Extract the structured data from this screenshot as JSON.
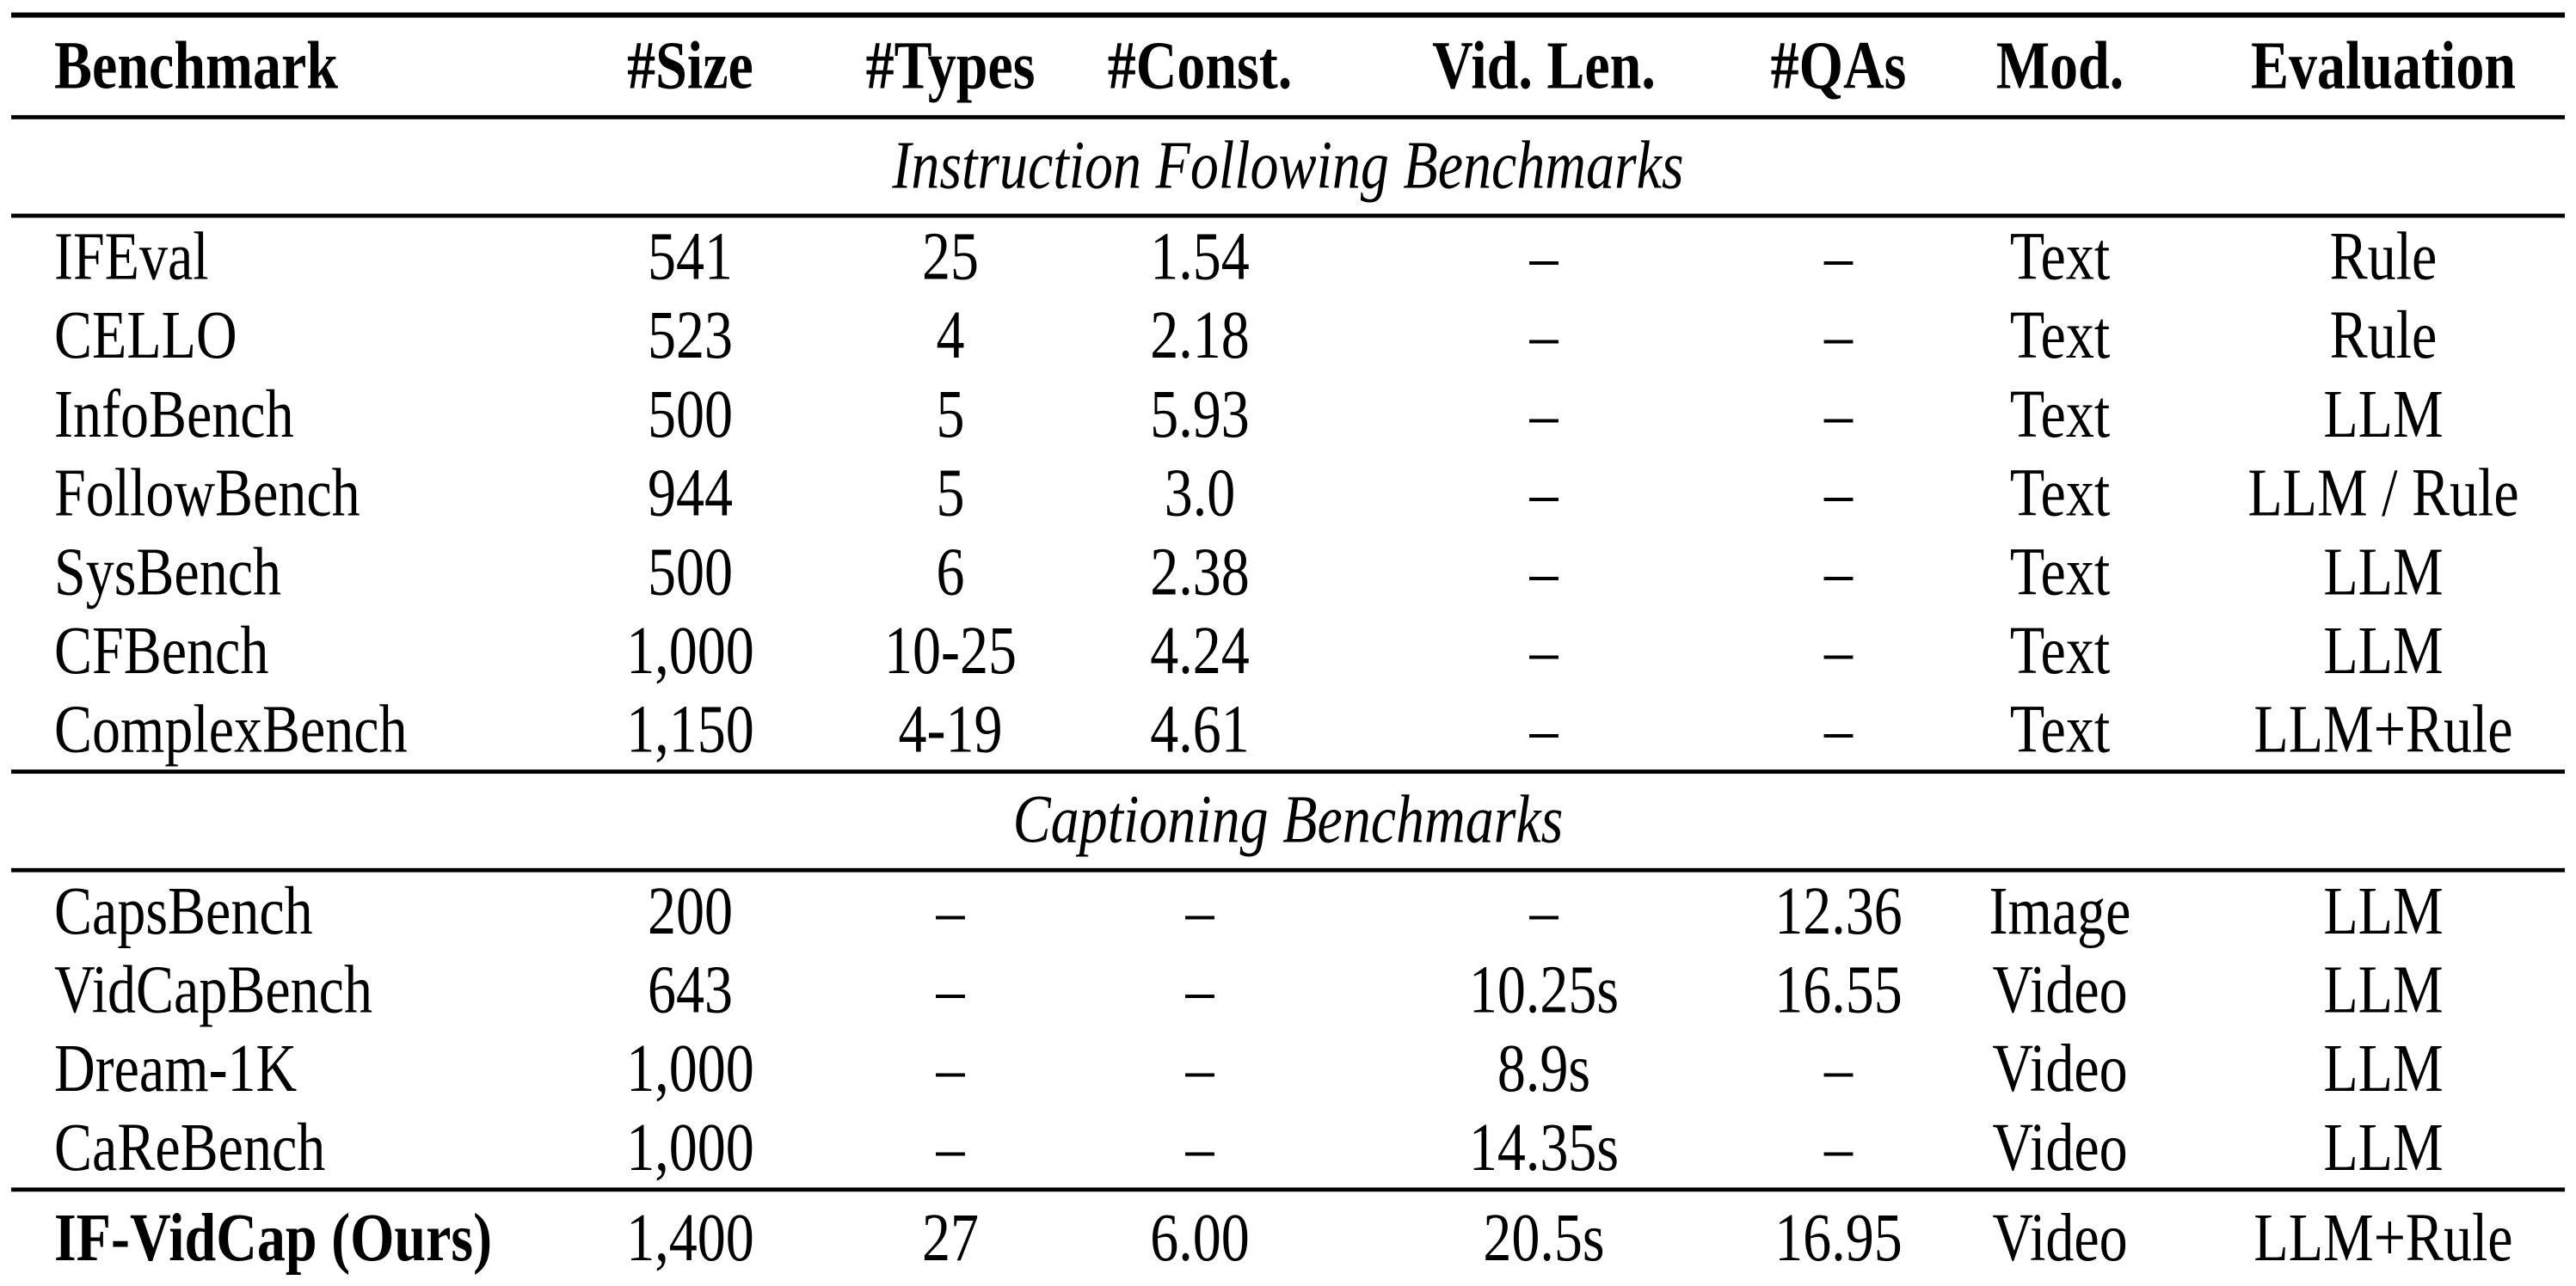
{
  "page": {
    "background_color": "#ffffff",
    "text_color": "#000000"
  },
  "table": {
    "columns": [
      "Benchmark",
      "#Size",
      "#Types",
      "#Const.",
      "Vid. Len.",
      "#QAs",
      "Mod.",
      "Evaluation"
    ],
    "sections": [
      {
        "title": "Instruction Following Benchmarks",
        "rows": [
          [
            "IFEval",
            "541",
            "25",
            "1.54",
            "–",
            "–",
            "Text",
            "Rule"
          ],
          [
            "CELLO",
            "523",
            "4",
            "2.18",
            "–",
            "–",
            "Text",
            "Rule"
          ],
          [
            "InfoBench",
            "500",
            "5",
            "5.93",
            "–",
            "–",
            "Text",
            "LLM"
          ],
          [
            "FollowBench",
            "944",
            "5",
            "3.0",
            "–",
            "–",
            "Text",
            "LLM / Rule"
          ],
          [
            "SysBench",
            "500",
            "6",
            "2.38",
            "–",
            "–",
            "Text",
            "LLM"
          ],
          [
            "CFBench",
            "1,000",
            "10-25",
            "4.24",
            "–",
            "–",
            "Text",
            "LLM"
          ],
          [
            "ComplexBench",
            "1,150",
            "4-19",
            "4.61",
            "–",
            "–",
            "Text",
            "LLM+Rule"
          ]
        ]
      },
      {
        "title": "Captioning Benchmarks",
        "rows": [
          [
            "CapsBench",
            "200",
            "–",
            "–",
            "–",
            "12.36",
            "Image",
            "LLM"
          ],
          [
            "VidCapBench",
            "643",
            "–",
            "–",
            "10.25s",
            "16.55",
            "Video",
            "LLM"
          ],
          [
            "Dream-1K",
            "1,000",
            "–",
            "–",
            "8.9s",
            "–",
            "Video",
            "LLM"
          ],
          [
            "CaReBench",
            "1,000",
            "–",
            "–",
            "14.35s",
            "–",
            "Video",
            "LLM"
          ]
        ]
      }
    ],
    "final_row": [
      "IF-VidCap (Ours)",
      "1,400",
      "27",
      "6.00",
      "20.5s",
      "16.95",
      "Video",
      "LLM+Rule"
    ]
  }
}
